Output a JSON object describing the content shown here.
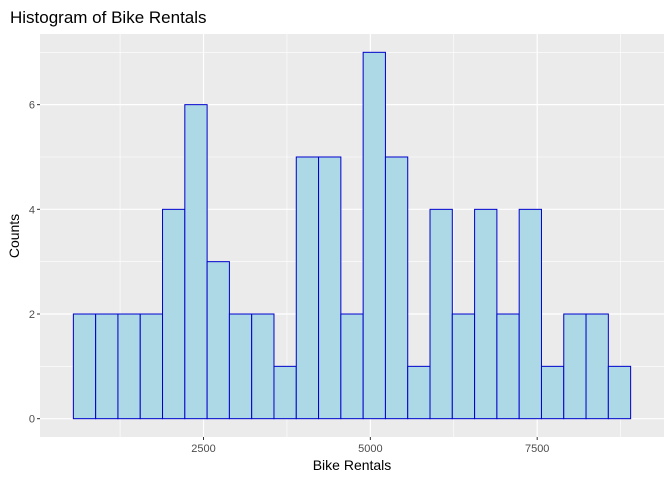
{
  "chart_data": {
    "type": "bar",
    "title": "Histogram of Bike Rentals",
    "xlabel": "Bike Rentals",
    "ylabel": "Counts",
    "bins": [
      {
        "x0": 550,
        "x1": 884,
        "count": 2
      },
      {
        "x0": 884,
        "x1": 1218,
        "count": 2
      },
      {
        "x0": 1218,
        "x1": 1552,
        "count": 2
      },
      {
        "x0": 1552,
        "x1": 1886,
        "count": 2
      },
      {
        "x0": 1886,
        "x1": 2220,
        "count": 4
      },
      {
        "x0": 2220,
        "x1": 2554,
        "count": 6
      },
      {
        "x0": 2554,
        "x1": 2888,
        "count": 3
      },
      {
        "x0": 2888,
        "x1": 3222,
        "count": 2
      },
      {
        "x0": 3222,
        "x1": 3556,
        "count": 2
      },
      {
        "x0": 3556,
        "x1": 3890,
        "count": 1
      },
      {
        "x0": 3890,
        "x1": 4224,
        "count": 5
      },
      {
        "x0": 4224,
        "x1": 4558,
        "count": 5
      },
      {
        "x0": 4558,
        "x1": 4892,
        "count": 2
      },
      {
        "x0": 4892,
        "x1": 5226,
        "count": 7
      },
      {
        "x0": 5226,
        "x1": 5560,
        "count": 5
      },
      {
        "x0": 5560,
        "x1": 5894,
        "count": 1
      },
      {
        "x0": 5894,
        "x1": 6228,
        "count": 4
      },
      {
        "x0": 6228,
        "x1": 6562,
        "count": 2
      },
      {
        "x0": 6562,
        "x1": 6896,
        "count": 4
      },
      {
        "x0": 6896,
        "x1": 7230,
        "count": 2
      },
      {
        "x0": 7230,
        "x1": 7564,
        "count": 4
      },
      {
        "x0": 7564,
        "x1": 7898,
        "count": 1
      },
      {
        "x0": 7898,
        "x1": 8232,
        "count": 2
      },
      {
        "x0": 8232,
        "x1": 8566,
        "count": 2
      },
      {
        "x0": 8566,
        "x1": 8900,
        "count": 1
      }
    ],
    "xlim": [
      50,
      9400
    ],
    "ylim": [
      -0.35,
      7.35
    ],
    "x_ticks": [
      2500,
      5000,
      7500
    ],
    "x_minor_ticks": [
      1250,
      3750,
      6250,
      8750
    ],
    "y_ticks": [
      0,
      2,
      4,
      6
    ],
    "y_minor_ticks": [
      1,
      3,
      5,
      7
    ],
    "grid": true,
    "colors": {
      "panel_background": "#ebebeb",
      "grid_line": "#ffffff",
      "bar_fill": "#add8e6",
      "bar_stroke": "#0000cd",
      "tick_label": "#4d4d4d",
      "tick_mark": "#333333"
    }
  }
}
